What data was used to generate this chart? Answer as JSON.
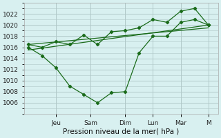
{
  "title": "",
  "xlabel": "Pression niveau de la mer( hPa )",
  "ylabel": "",
  "bg_color": "#d8f0f0",
  "grid_color": "#b0c8c8",
  "line_color": "#1a6b1a",
  "ylim": [
    1004,
    1024
  ],
  "xlim": [
    -0.3,
    13.7
  ],
  "yticks": [
    1006,
    1008,
    1010,
    1012,
    1014,
    1016,
    1018,
    1020,
    1022
  ],
  "day_labels": [
    "Jeu",
    "Sam",
    "Dim",
    "Lun",
    "Mar",
    "M"
  ],
  "day_positions": [
    2.0,
    4.5,
    7.0,
    9.0,
    11.0,
    13.0
  ],
  "zigzag_x": [
    0,
    1,
    2,
    3,
    4,
    5,
    6,
    7,
    8,
    9,
    10,
    11,
    12,
    13
  ],
  "zigzag_y": [
    1016.0,
    1014.5,
    1012.3,
    1009.0,
    1007.5,
    1006.0,
    1007.8,
    1008.0,
    1015.0,
    1018.0,
    1018.0,
    1020.5,
    1021.0,
    1020.0
  ],
  "upper_x": [
    0,
    1,
    2,
    3,
    4,
    5,
    6,
    7,
    8,
    9,
    10,
    11,
    12,
    13
  ],
  "upper_y": [
    1016.5,
    1016.0,
    1017.0,
    1016.5,
    1018.2,
    1016.5,
    1018.8,
    1019.0,
    1019.5,
    1021.0,
    1020.5,
    1022.5,
    1023.0,
    1020.0
  ],
  "trend1_x": [
    0,
    13
  ],
  "trend1_y": [
    1015.5,
    1020.0
  ],
  "trend2_x": [
    0,
    13
  ],
  "trend2_y": [
    1016.5,
    1019.5
  ]
}
